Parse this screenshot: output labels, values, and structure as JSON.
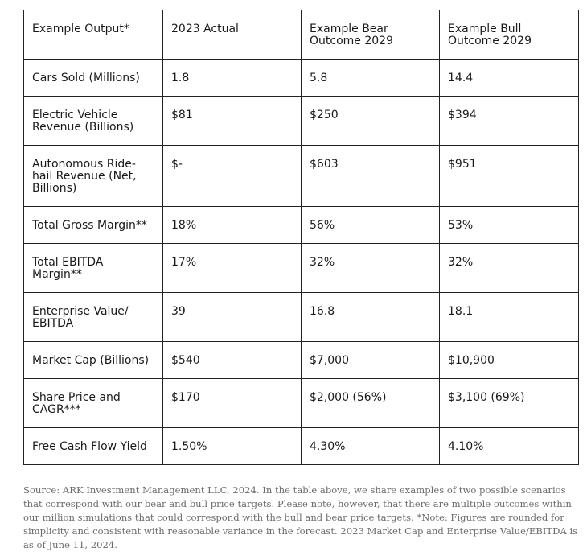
{
  "table": {
    "headers": [
      "Example Output*",
      "2023 Actual",
      "Example Bear Outcome 2029",
      "Example Bull Outcome 2029"
    ],
    "rows": [
      [
        "Cars Sold (Millions)",
        "1.8",
        "5.8",
        "14.4"
      ],
      [
        "Electric Vehicle Revenue (Billions)",
        "$81",
        "$250",
        "$394"
      ],
      [
        "Autonomous Ride-hail Revenue (Net, Billions)",
        "$-",
        "$603",
        "$951"
      ],
      [
        "Total Gross Margin**",
        "18%",
        "56%",
        "53%"
      ],
      [
        "Total EBITDA Margin**",
        "17%",
        "32%",
        "32%"
      ],
      [
        "Enterprise Value/ EBITDA",
        "39",
        "16.8",
        "18.1"
      ],
      [
        "Market Cap (Billions)",
        "$540",
        "$7,000",
        "$10,900"
      ],
      [
        "Share Price and CAGR***",
        "$170",
        "$2,000 (56%)",
        "$3,100 (69%)"
      ],
      [
        "Free Cash Flow Yield",
        "1.50%",
        "4.30%",
        "4.10%"
      ]
    ]
  },
  "source_note": "Source: ARK Investment Management LLC, 2024. In the table above, we share examples of two possible scenarios that correspond with our bear and bull price targets. Please note, however, that there are multiple outcomes within our million simulations that could correspond with the bull and bear price targets. *Note: Figures are rounded for simplicity and consistent with reasonable variance in the forecast. 2023 Market Cap and Enterprise Value/EBITDA is as of June 11, 2024."
}
